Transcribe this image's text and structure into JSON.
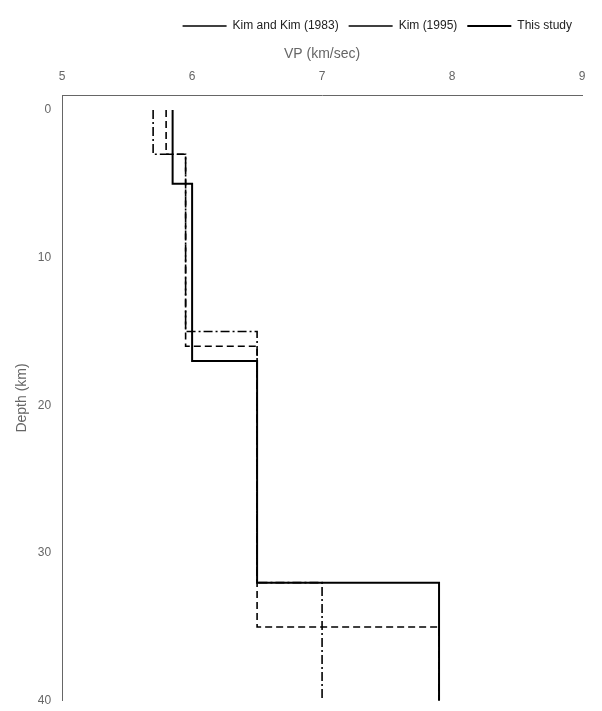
{
  "chart_data": {
    "type": "line",
    "xlabel": "VP (km/sec)",
    "ylabel": "Depth (km)",
    "xlim": [
      5,
      9
    ],
    "ylim": [
      40,
      -1
    ],
    "xticks": [
      5,
      6,
      7,
      8,
      9
    ],
    "yticks": [
      0,
      10,
      20,
      30,
      40
    ],
    "grid": false,
    "legend": "upper right",
    "series": [
      {
        "name": "Kim and Kim (1983)",
        "color": "black",
        "line_style": "dashdot",
        "x": [
          5.7,
          5.7,
          5.95,
          5.95,
          6.5,
          6.5,
          7.0,
          7.0
        ],
        "values": [
          0,
          3,
          3,
          15,
          15,
          32,
          32,
          40
        ]
      },
      {
        "name": "Kim (1995)",
        "color": "black",
        "line_style": "dashed",
        "x": [
          5.8,
          5.8,
          5.95,
          5.95,
          6.5,
          6.5,
          7.9,
          7.9
        ],
        "values": [
          0,
          3,
          3,
          16,
          16,
          35,
          35,
          40
        ]
      },
      {
        "name": "This study",
        "color": "black",
        "line_style": "solid",
        "x": [
          5.85,
          5.85,
          6.0,
          6.0,
          6.5,
          6.5,
          7.9,
          7.9
        ],
        "values": [
          0,
          5,
          5,
          17,
          17,
          32,
          32,
          40
        ]
      }
    ]
  }
}
